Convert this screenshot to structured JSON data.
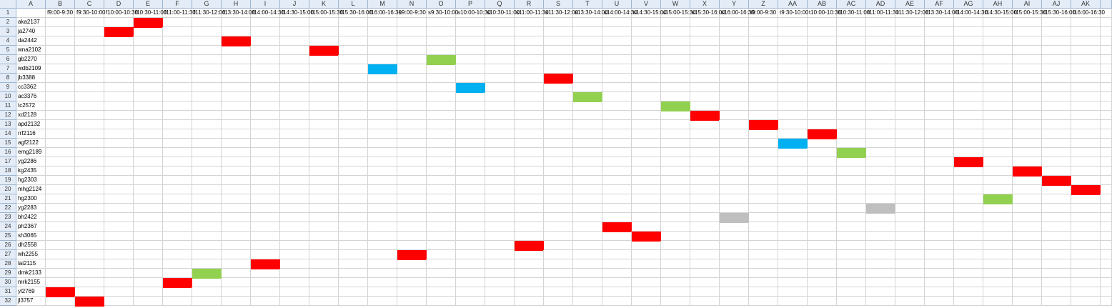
{
  "columns": [
    "A",
    "B",
    "C",
    "D",
    "E",
    "F",
    "G",
    "H",
    "I",
    "J",
    "K",
    "L",
    "M",
    "N",
    "O",
    "P",
    "Q",
    "R",
    "S",
    "T",
    "U",
    "V",
    "W",
    "X",
    "Y",
    "Z",
    "AA",
    "AB",
    "AC",
    "AD",
    "AE",
    "AF",
    "AG",
    "AH",
    "AI",
    "AJ",
    "AK"
  ],
  "time_slots": [
    "f9:00-9:30",
    "f9:30-10:00",
    "f10:00-10:30",
    "f10:30-11:00",
    "f11:00-11:30",
    "f11:30-12:00",
    "f13:30-14:00",
    "f14:00-14:30",
    "f14:30-15:00",
    "f15:00-15:30",
    "f15:30-16:00",
    "f16:00-16:30",
    "s9:00-9:30",
    "s9:30-10:00",
    "s10:00-10:30",
    "s10:30-11:00",
    "s11:00-11:30",
    "s11:30-12:00",
    "s13:30-14:00",
    "s14:00-14:30",
    "s14:30-15:00",
    "s15:00-15:30",
    "s15:30-16:00",
    "s16:00-16:30",
    "t9:00-9:30",
    "t9:30-10:00",
    "t10:00-10:30",
    "t10:30-11:00",
    "t11:00-11:30",
    "t11:30-12:00",
    "t13:30-14:00",
    "t14:00-14:30",
    "t14:30-15:00",
    "t15:00-15:30",
    "t15:30-16:00",
    "t16:00-16:30"
  ],
  "rows": [
    {
      "num": "1",
      "name": ""
    },
    {
      "num": "2",
      "name": "aka2137",
      "slot": 3,
      "color": "red"
    },
    {
      "num": "3",
      "name": "ja2740",
      "slot": 2,
      "color": "red"
    },
    {
      "num": "4",
      "name": "da2442",
      "slot": 6,
      "color": "red"
    },
    {
      "num": "5",
      "name": "wna2102",
      "slot": 9,
      "color": "red"
    },
    {
      "num": "6",
      "name": "gb2270",
      "slot": 13,
      "color": "green"
    },
    {
      "num": "7",
      "name": "wdb2109",
      "slot": 11,
      "color": "blue"
    },
    {
      "num": "8",
      "name": "jb3388",
      "slot": 17,
      "color": "red"
    },
    {
      "num": "9",
      "name": "cc3362",
      "slot": 14,
      "color": "blue"
    },
    {
      "num": "10",
      "name": "ac3376",
      "slot": 18,
      "color": "green"
    },
    {
      "num": "11",
      "name": "tc2572",
      "slot": 21,
      "color": "green"
    },
    {
      "num": "12",
      "name": "xd2128",
      "slot": 22,
      "color": "red"
    },
    {
      "num": "13",
      "name": "apd2132",
      "slot": 24,
      "color": "red"
    },
    {
      "num": "14",
      "name": "rrf2116",
      "slot": 26,
      "color": "red"
    },
    {
      "num": "15",
      "name": "agf2122",
      "slot": 25,
      "color": "blue"
    },
    {
      "num": "16",
      "name": "emg2189",
      "slot": 27,
      "color": "green"
    },
    {
      "num": "17",
      "name": "yg2286",
      "slot": 31,
      "color": "red"
    },
    {
      "num": "18",
      "name": "kg2435",
      "slot": 33,
      "color": "red"
    },
    {
      "num": "19",
      "name": "hg2303",
      "slot": 34,
      "color": "red"
    },
    {
      "num": "20",
      "name": "mhg2124",
      "slot": 35,
      "color": "red"
    },
    {
      "num": "21",
      "name": "hg2300",
      "slot": 32,
      "color": "green"
    },
    {
      "num": "22",
      "name": "yg2283",
      "slot": 28,
      "color": "gray"
    },
    {
      "num": "23",
      "name": "bh2422",
      "slot": 23,
      "color": "gray"
    },
    {
      "num": "24",
      "name": "ph2367",
      "slot": 19,
      "color": "red"
    },
    {
      "num": "25",
      "name": "sh3065",
      "slot": 20,
      "color": "red"
    },
    {
      "num": "26",
      "name": "dh2558",
      "slot": 16,
      "color": "red"
    },
    {
      "num": "27",
      "name": "wh2255",
      "slot": 12,
      "color": "red"
    },
    {
      "num": "28",
      "name": "lai2115",
      "slot": 7,
      "color": "red"
    },
    {
      "num": "29",
      "name": "dmk2133",
      "slot": 5,
      "color": "green"
    },
    {
      "num": "30",
      "name": "mrk2155",
      "slot": 4,
      "color": "red"
    },
    {
      "num": "31",
      "name": "yl2769",
      "slot": 0,
      "color": "red"
    },
    {
      "num": "32",
      "name": "jl3757",
      "slot": 1,
      "color": "red"
    }
  ],
  "colors": {
    "red": "#ff0000",
    "green": "#92d050",
    "blue": "#00b0f0",
    "gray": "#bfbfbf"
  }
}
